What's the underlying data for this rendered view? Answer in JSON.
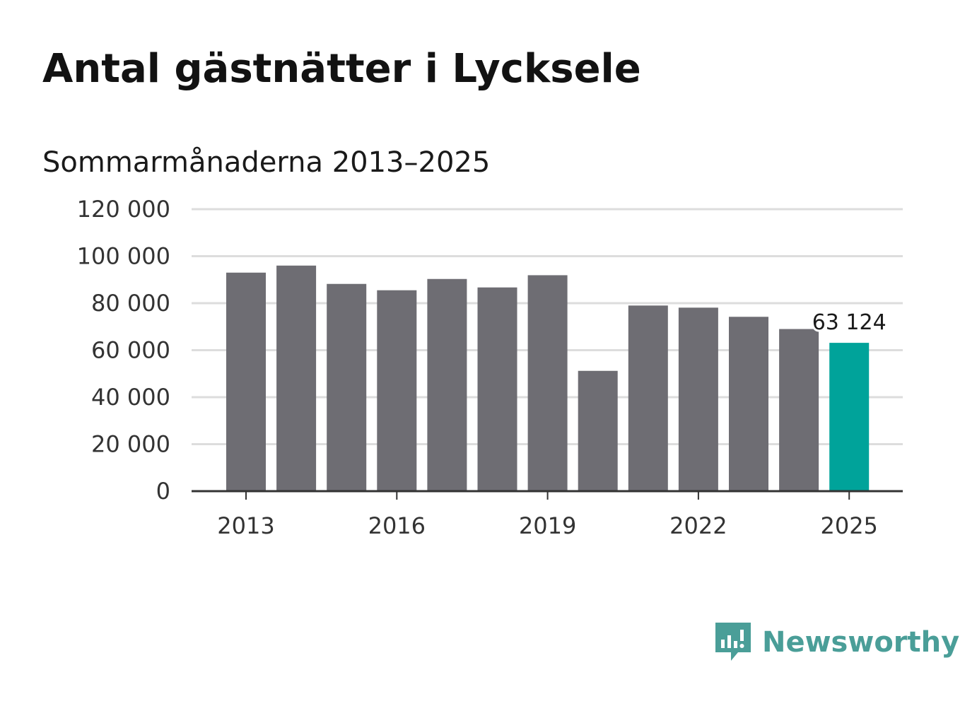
{
  "header": {
    "title": "Antal gästnätter i Lycksele",
    "subtitle": "Sommarmånaderna 2013–2025"
  },
  "brand": {
    "name": "Newsworthy",
    "logo_icon": "newsworthy-bar-chart-speech-bubble-icon",
    "color": "#4a9e98"
  },
  "colors": {
    "bar": "#6e6d73",
    "highlight": "#00a39a",
    "grid": "#dddddd",
    "axis": "#333333"
  },
  "chart_data": {
    "type": "bar",
    "title": "Antal gästnätter i Lycksele",
    "subtitle": "Sommarmånaderna 2013–2025",
    "categories": [
      "2013",
      "2014",
      "2015",
      "2016",
      "2017",
      "2018",
      "2019",
      "2020",
      "2021",
      "2022",
      "2023",
      "2024",
      "2025"
    ],
    "values": [
      93000,
      96000,
      88200,
      85500,
      90300,
      86700,
      91900,
      51200,
      79000,
      78100,
      74200,
      69000,
      63124
    ],
    "x_tick_labels": [
      "2013",
      "2016",
      "2019",
      "2022",
      "2025"
    ],
    "y_tick_labels": [
      "0",
      "20 000",
      "40 000",
      "60 000",
      "80 000",
      "100 000",
      "120 000"
    ],
    "y_ticks": [
      0,
      20000,
      40000,
      60000,
      80000,
      100000,
      120000
    ],
    "ylim": [
      0,
      120000
    ],
    "highlight_category": "2025",
    "data_label": {
      "category": "2025",
      "text": "63 124"
    },
    "grid": true,
    "legend": "none",
    "xlabel": "",
    "ylabel": ""
  }
}
